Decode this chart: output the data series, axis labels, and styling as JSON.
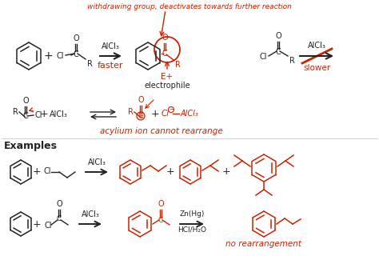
{
  "bg_color": "#ffffff",
  "black": "#222222",
  "red": "#cc2200",
  "alcl3": "AlCl₃",
  "e_plus": "E+",
  "electrophile": "electrophile",
  "acylium_text": "acylium ion cannot rearrange",
  "title_text": "withdrawing group, deactivates towards further reaction",
  "faster_text": "faster",
  "slower_text": "slower",
  "examples_label": "Examples",
  "no_rearr": "no rearrangement",
  "zn_hg": "Zn(Hg)",
  "hcl_h2o": "HCl/H₂O",
  "fig_w": 4.74,
  "fig_h": 3.25,
  "dpi": 100
}
